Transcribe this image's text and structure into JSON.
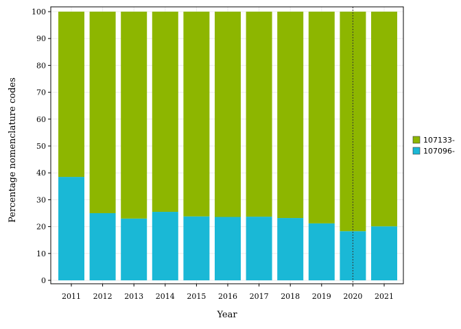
{
  "chart_data": {
    "type": "bar",
    "stacked": true,
    "xlabel": "Year",
    "ylabel": "Percentage nomenclature codes",
    "categories": [
      "2011",
      "2012",
      "2013",
      "2014",
      "2015",
      "2016",
      "2017",
      "2018",
      "2019",
      "2020",
      "2021"
    ],
    "series": [
      {
        "name": "107096-",
        "color": "#1ab8d6",
        "values": [
          38.5,
          25.0,
          23.0,
          25.5,
          23.8,
          23.6,
          23.7,
          23.2,
          21.2,
          18.3,
          20.1
        ]
      },
      {
        "name": "107133-",
        "color": "#8db600",
        "values": [
          61.5,
          75.0,
          77.0,
          74.5,
          76.2,
          76.4,
          76.3,
          76.8,
          78.8,
          81.7,
          79.9
        ]
      }
    ],
    "ylim": [
      0,
      100
    ],
    "yticks": [
      0,
      10,
      20,
      30,
      40,
      50,
      60,
      70,
      80,
      90,
      100
    ],
    "reference_line": {
      "x": "2020",
      "style": "dotted"
    },
    "legend": {
      "placement": "right",
      "order": [
        "107133-",
        "107096-"
      ]
    },
    "grid": true
  }
}
